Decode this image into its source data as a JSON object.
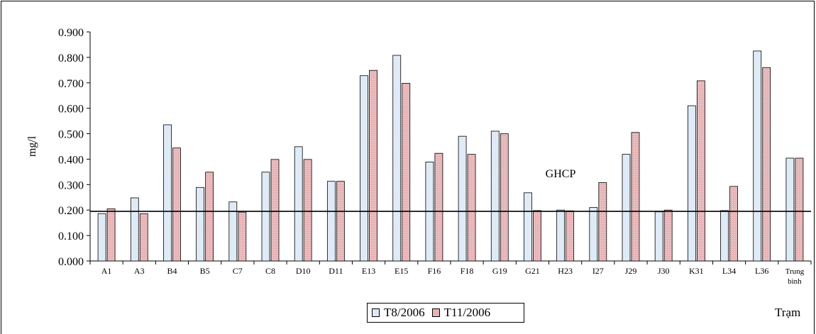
{
  "chart_data": {
    "type": "bar",
    "title": "",
    "xlabel": "Trạm",
    "ylabel": "mg/l",
    "ylim": [
      0,
      0.9
    ],
    "yticks": [
      "0.000",
      "0.100",
      "0.200",
      "0.300",
      "0.400",
      "0.500",
      "0.600",
      "0.700",
      "0.800",
      "0.900"
    ],
    "categories": [
      "A1",
      "A3",
      "B4",
      "B5",
      "C7",
      "C8",
      "D10",
      "D11",
      "E13",
      "E15",
      "F16",
      "F18",
      "G19",
      "G21",
      "H23",
      "I27",
      "J29",
      "J30",
      "K31",
      "L34",
      "L36",
      "Trung bình"
    ],
    "series": [
      {
        "name": "T8/2006",
        "color": "#dde9f6",
        "values": [
          0.186,
          0.248,
          0.535,
          0.289,
          0.232,
          0.349,
          0.449,
          0.313,
          0.728,
          0.808,
          0.389,
          0.49,
          0.51,
          0.268,
          0.2,
          0.21,
          0.419,
          0.193,
          0.61,
          0.198,
          0.825,
          0.404
        ]
      },
      {
        "name": "T11/2006",
        "color": "#e6b3b6",
        "values": [
          0.205,
          0.186,
          0.444,
          0.349,
          0.192,
          0.399,
          0.399,
          0.313,
          0.749,
          0.698,
          0.423,
          0.419,
          0.5,
          0.198,
          0.197,
          0.308,
          0.505,
          0.2,
          0.708,
          0.293,
          0.76,
          0.404
        ]
      }
    ],
    "reference_line": {
      "label": "GHCP",
      "value": 0.195
    },
    "legend_position": "bottom",
    "grid": false
  }
}
